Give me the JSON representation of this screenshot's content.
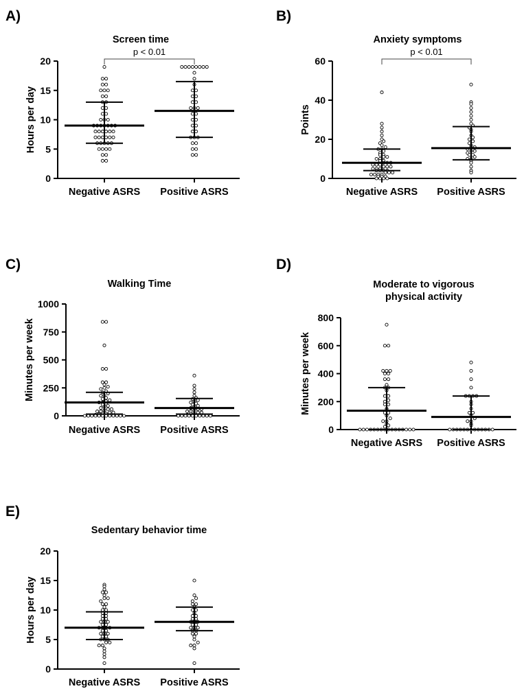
{
  "figure": {
    "charts": [
      {
        "panel": "A)",
        "title_lines": [
          "Screen time"
        ],
        "ylabel": "Hours per day",
        "categories": [
          "Negative ASRS",
          "Positive ASRS"
        ],
        "ylim": [
          0,
          20
        ],
        "yticks": [
          0,
          5,
          10,
          15,
          20
        ],
        "significance": "p < 0.01"
      },
      {
        "panel": "B)",
        "title_lines": [
          "Anxiety symptoms"
        ],
        "ylabel": "Points",
        "categories": [
          "Negative ASRS",
          "Positive ASRS"
        ],
        "ylim": [
          0,
          60
        ],
        "yticks": [
          0,
          20,
          40,
          60
        ],
        "significance": "p < 0.01"
      },
      {
        "panel": "C)",
        "title_lines": [
          "Walking Time"
        ],
        "ylabel": "Minutes per week",
        "categories": [
          "Negative ASRS",
          "Positive ASRS"
        ],
        "ylim": [
          0,
          1000
        ],
        "yticks": [
          0,
          250,
          500,
          750,
          1000
        ],
        "significance": ""
      },
      {
        "panel": "D)",
        "title_lines": [
          "Moderate to vigorous",
          "physical activity"
        ],
        "ylabel": "Minutes per week",
        "categories": [
          "Negative ASRS",
          "Positive ASRS"
        ],
        "ylim": [
          0,
          800
        ],
        "yticks": [
          0,
          200,
          400,
          600,
          800
        ],
        "significance": ""
      },
      {
        "panel": "E)",
        "title_lines": [
          "Sedentary behavior time"
        ],
        "ylabel": "Hours per day",
        "categories": [
          "Negative ASRS",
          "Positive ASRS"
        ],
        "ylim": [
          0,
          20
        ],
        "yticks": [
          0,
          5,
          10,
          15,
          20
        ],
        "significance": ""
      }
    ]
  },
  "chart_data": [
    {
      "type": "scatter",
      "title": "Screen time",
      "xlabel": "",
      "ylabel": "Hours per day",
      "ylim": [
        0,
        20
      ],
      "significance": "p < 0.01",
      "series": [
        {
          "name": "Negative ASRS",
          "median": 9,
          "q1": 6,
          "q3": 13,
          "values": [
            3,
            3,
            4,
            4,
            5,
            5,
            5,
            5,
            6,
            6,
            6,
            6,
            6,
            7,
            7,
            7,
            7,
            7,
            7,
            8,
            8,
            8,
            8,
            8,
            8,
            9,
            9,
            9,
            9,
            9,
            9,
            9,
            10,
            10,
            10,
            11,
            11,
            12,
            12,
            13,
            13,
            14,
            14,
            15,
            15,
            15,
            16,
            16,
            17,
            17,
            19
          ]
        },
        {
          "name": "Positive ASRS",
          "median": 11.5,
          "q1": 7,
          "q3": 16.5,
          "values": [
            4,
            4,
            5,
            5,
            6,
            6,
            7,
            7,
            7,
            8,
            8,
            9,
            9,
            10,
            10,
            11,
            11,
            12,
            12,
            12,
            13,
            13,
            14,
            14,
            15,
            15,
            16,
            17,
            18,
            19,
            19,
            19,
            19,
            19,
            19,
            19,
            19
          ]
        }
      ]
    },
    {
      "type": "scatter",
      "title": "Anxiety symptoms",
      "xlabel": "",
      "ylabel": "Points",
      "ylim": [
        0,
        60
      ],
      "significance": "p < 0.01",
      "series": [
        {
          "name": "Negative ASRS",
          "median": 8,
          "q1": 4,
          "q3": 15,
          "values": [
            0,
            0,
            0,
            0,
            1,
            1,
            1,
            2,
            2,
            2,
            2,
            3,
            3,
            3,
            4,
            4,
            4,
            4,
            5,
            5,
            5,
            6,
            6,
            6,
            7,
            7,
            7,
            8,
            8,
            8,
            9,
            9,
            10,
            10,
            11,
            11,
            12,
            12,
            13,
            14,
            15,
            15,
            16,
            17,
            18,
            19,
            20,
            22,
            24,
            26,
            28,
            44
          ]
        },
        {
          "name": "Positive ASRS",
          "median": 15.5,
          "q1": 9.5,
          "q3": 26.5,
          "values": [
            3,
            4,
            6,
            8,
            9,
            10,
            10,
            11,
            12,
            12,
            13,
            14,
            14,
            15,
            16,
            16,
            17,
            18,
            19,
            20,
            21,
            22,
            24,
            25,
            26,
            27,
            28,
            30,
            32,
            34,
            36,
            38,
            39,
            48
          ]
        }
      ]
    },
    {
      "type": "scatter",
      "title": "Walking Time",
      "xlabel": "",
      "ylabel": "Minutes per week",
      "ylim": [
        0,
        1000
      ],
      "significance": "",
      "series": [
        {
          "name": "Negative ASRS",
          "median": 120,
          "q1": 15,
          "q3": 210,
          "values": [
            0,
            0,
            0,
            0,
            0,
            0,
            0,
            0,
            0,
            0,
            0,
            0,
            10,
            15,
            20,
            20,
            30,
            30,
            40,
            40,
            50,
            60,
            60,
            70,
            80,
            90,
            100,
            110,
            120,
            120,
            130,
            140,
            150,
            160,
            180,
            180,
            200,
            210,
            220,
            240,
            250,
            260,
            280,
            300,
            300,
            420,
            420,
            630,
            840,
            840
          ]
        },
        {
          "name": "Positive ASRS",
          "median": 70,
          "q1": 15,
          "q3": 155,
          "values": [
            0,
            0,
            0,
            0,
            0,
            0,
            0,
            0,
            0,
            0,
            10,
            20,
            20,
            30,
            30,
            40,
            40,
            50,
            60,
            60,
            70,
            80,
            90,
            100,
            110,
            120,
            130,
            140,
            150,
            160,
            180,
            210,
            240,
            270,
            360
          ]
        }
      ]
    },
    {
      "type": "scatter",
      "title": "Moderate to vigorous physical activity",
      "xlabel": "",
      "ylabel": "Minutes per week",
      "ylim": [
        0,
        800
      ],
      "significance": "",
      "series": [
        {
          "name": "Negative ASRS",
          "median": 135,
          "q1": 0,
          "q3": 300,
          "values": [
            0,
            0,
            0,
            0,
            0,
            0,
            0,
            0,
            0,
            0,
            0,
            0,
            0,
            0,
            0,
            0,
            20,
            30,
            40,
            60,
            60,
            80,
            100,
            120,
            120,
            140,
            150,
            180,
            180,
            200,
            210,
            240,
            240,
            280,
            300,
            300,
            320,
            360,
            360,
            400,
            400,
            420,
            420,
            420,
            600,
            600,
            750
          ]
        },
        {
          "name": "Positive ASRS",
          "median": 90,
          "q1": 0,
          "q3": 240,
          "values": [
            0,
            0,
            0,
            0,
            0,
            0,
            0,
            0,
            0,
            0,
            0,
            0,
            0,
            30,
            40,
            60,
            60,
            80,
            100,
            120,
            120,
            150,
            180,
            200,
            240,
            240,
            240,
            240,
            300,
            360,
            420,
            480
          ]
        }
      ]
    },
    {
      "type": "scatter",
      "title": "Sedentary behavior time",
      "xlabel": "",
      "ylabel": "Hours per day",
      "ylim": [
        0,
        20
      ],
      "significance": "",
      "series": [
        {
          "name": "Negative ASRS",
          "median": 7,
          "q1": 5,
          "q3": 9.7,
          "values": [
            1,
            2,
            2.5,
            3,
            3.5,
            4,
            4,
            4.5,
            4.5,
            5,
            5,
            5,
            5.5,
            5.5,
            6,
            6,
            6,
            6.5,
            6.5,
            7,
            7,
            7,
            7,
            7.5,
            7.5,
            8,
            8,
            8,
            8.5,
            8.5,
            9,
            9,
            9.5,
            9.5,
            10,
            10,
            10.5,
            11,
            11,
            11.5,
            12,
            12,
            12.5,
            13,
            13,
            13.5,
            14,
            14.3
          ]
        },
        {
          "name": "Positive ASRS",
          "median": 8,
          "q1": 6.5,
          "q3": 10.5,
          "values": [
            1,
            3.5,
            4,
            4,
            4.5,
            5,
            5.5,
            6,
            6,
            6.5,
            6.5,
            7,
            7,
            7,
            7.5,
            7.5,
            8,
            8,
            8,
            8.5,
            8.5,
            9,
            9,
            9.5,
            10,
            10,
            10.5,
            11,
            11,
            11.5,
            12,
            12.5,
            15
          ]
        }
      ]
    }
  ]
}
